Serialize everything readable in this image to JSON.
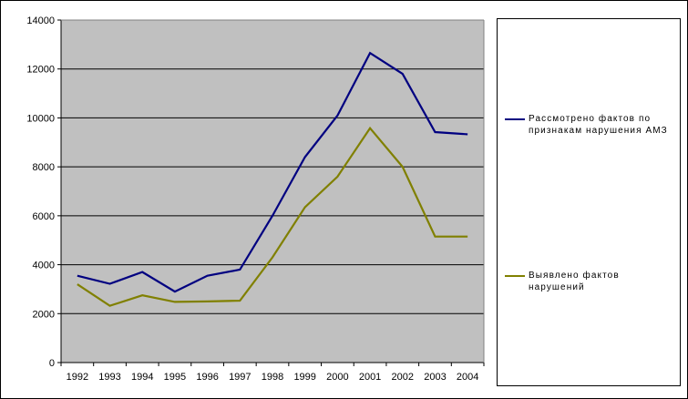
{
  "chart_data": {
    "type": "line",
    "categories": [
      "1992",
      "1993",
      "1994",
      "1995",
      "1996",
      "1997",
      "1998",
      "1999",
      "2000",
      "2001",
      "2002",
      "2003",
      "2004"
    ],
    "series": [
      {
        "name": "Рассмотрено фактов по\nпризнакам нарушения АМЗ",
        "color": "#000080",
        "values": [
          3550,
          3220,
          3700,
          2900,
          3550,
          3800,
          6000,
          8400,
          10100,
          12650,
          11800,
          9420,
          9330
        ]
      },
      {
        "name": "Выявлено фактов\nнарушений",
        "color": "#808000",
        "values": [
          3200,
          2320,
          2750,
          2480,
          2500,
          2530,
          4300,
          6350,
          7600,
          9580,
          8000,
          5150,
          5150
        ]
      }
    ],
    "ylim": [
      0,
      14000
    ],
    "yticks": [
      0,
      2000,
      4000,
      6000,
      8000,
      10000,
      12000,
      14000
    ],
    "grid": true,
    "plot_background": "#c0c0c0",
    "legend_position": "right"
  }
}
